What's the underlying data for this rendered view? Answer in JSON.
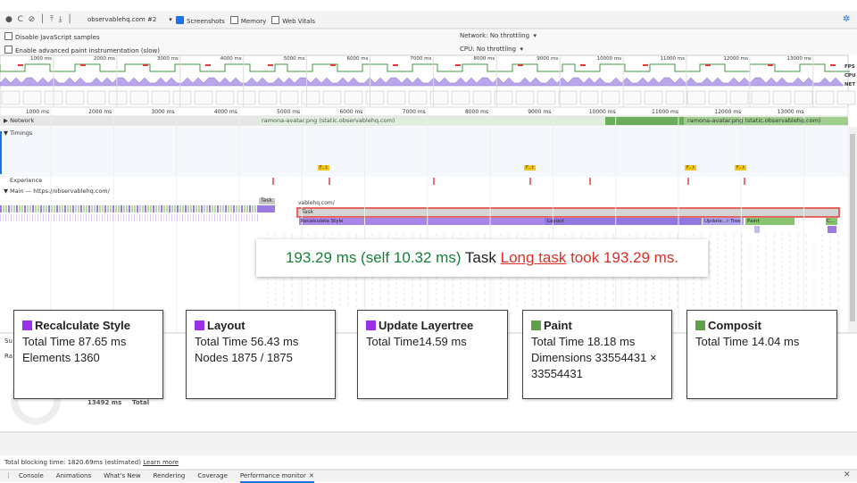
{
  "toolbar": {
    "target": "observablehq.com #2",
    "checkboxes": [
      "Screenshots",
      "Memory",
      "Web Vitals"
    ]
  },
  "settings": {
    "disable_js": "Disable JavaScript samples",
    "advanced_paint": "Enable advanced paint instrumentation (slow)",
    "network_label": "Network:",
    "network_value": "No throttling",
    "cpu_label": "CPU:",
    "cpu_value": "No throttling"
  },
  "overview": {
    "ticks": [
      "1000 ms",
      "2000 ms",
      "3000 ms",
      "4000 ms",
      "5000 ms",
      "6000 ms",
      "7000 ms",
      "8000 ms",
      "9000 ms",
      "10000 ms",
      "11000 ms",
      "12000 ms",
      "13000 ms"
    ],
    "lanes": [
      "FPS",
      "CPU",
      "NET"
    ]
  },
  "ruler": {
    "ticks": [
      "1000 ms",
      "2000 ms",
      "3000 ms",
      "4000 ms",
      "5000 ms",
      "6000 ms",
      "7000 ms",
      "8000 ms",
      "9000 ms",
      "10000 ms",
      "11000 ms",
      "12000 ms",
      "13000 ms"
    ]
  },
  "tracks": {
    "network": "Network",
    "network_requests": [
      "ramona-avatar.png (static.observablehq.com)",
      "ramona-avatar.png (static.observablehq.com)"
    ],
    "timings": "Timings",
    "timing_markers": [
      "F...t",
      "F...t",
      "F...t",
      "F...t"
    ],
    "experience": "Experience",
    "main": "Main — https://observablehq.com/"
  },
  "flame": {
    "url_fragment": "vablehq.com/",
    "task_small": "Task",
    "task": "Task",
    "events": [
      "Recalculate Style",
      "Layout",
      "Update...r Tree",
      "Paint",
      "C..."
    ]
  },
  "tooltip": {
    "duration": "193.29 ms (self 10.32 ms)",
    "name": "Task",
    "warning_link": "Long task",
    "warning_text": "took 193.29 ms."
  },
  "cards": [
    {
      "title": "Recalculate Style",
      "color": "#9b30e8",
      "lines": [
        "Total Time 87.65 ms",
        "Elements 1360"
      ]
    },
    {
      "title": "Layout",
      "color": "#9b30e8",
      "lines": [
        "Total Time 56.43 ms",
        "Nodes 1875 / 1875"
      ]
    },
    {
      "title": "Update Layertree",
      "color": "#9b30e8",
      "lines": [
        "Total Time14.59 ms"
      ]
    },
    {
      "title": "Paint",
      "color": "#5fa14a",
      "lines": [
        "Total Time 18.18 ms",
        "Dimensions 33554431 × 33554431"
      ]
    },
    {
      "title": "Composit",
      "color": "#5fa14a",
      "lines": [
        "Total Time 14.04 ms"
      ]
    }
  ],
  "summary": {
    "tab": "Su",
    "range": "Ra",
    "total_value": "13492 ms",
    "total_label": "Total"
  },
  "footer": {
    "blocking": "Total blocking time: 1820.69ms (estimated)",
    "learn_more": "Learn more"
  },
  "drawer_tabs": [
    "Console",
    "Animations",
    "What's New",
    "Rendering",
    "Coverage",
    "Performance monitor"
  ]
}
